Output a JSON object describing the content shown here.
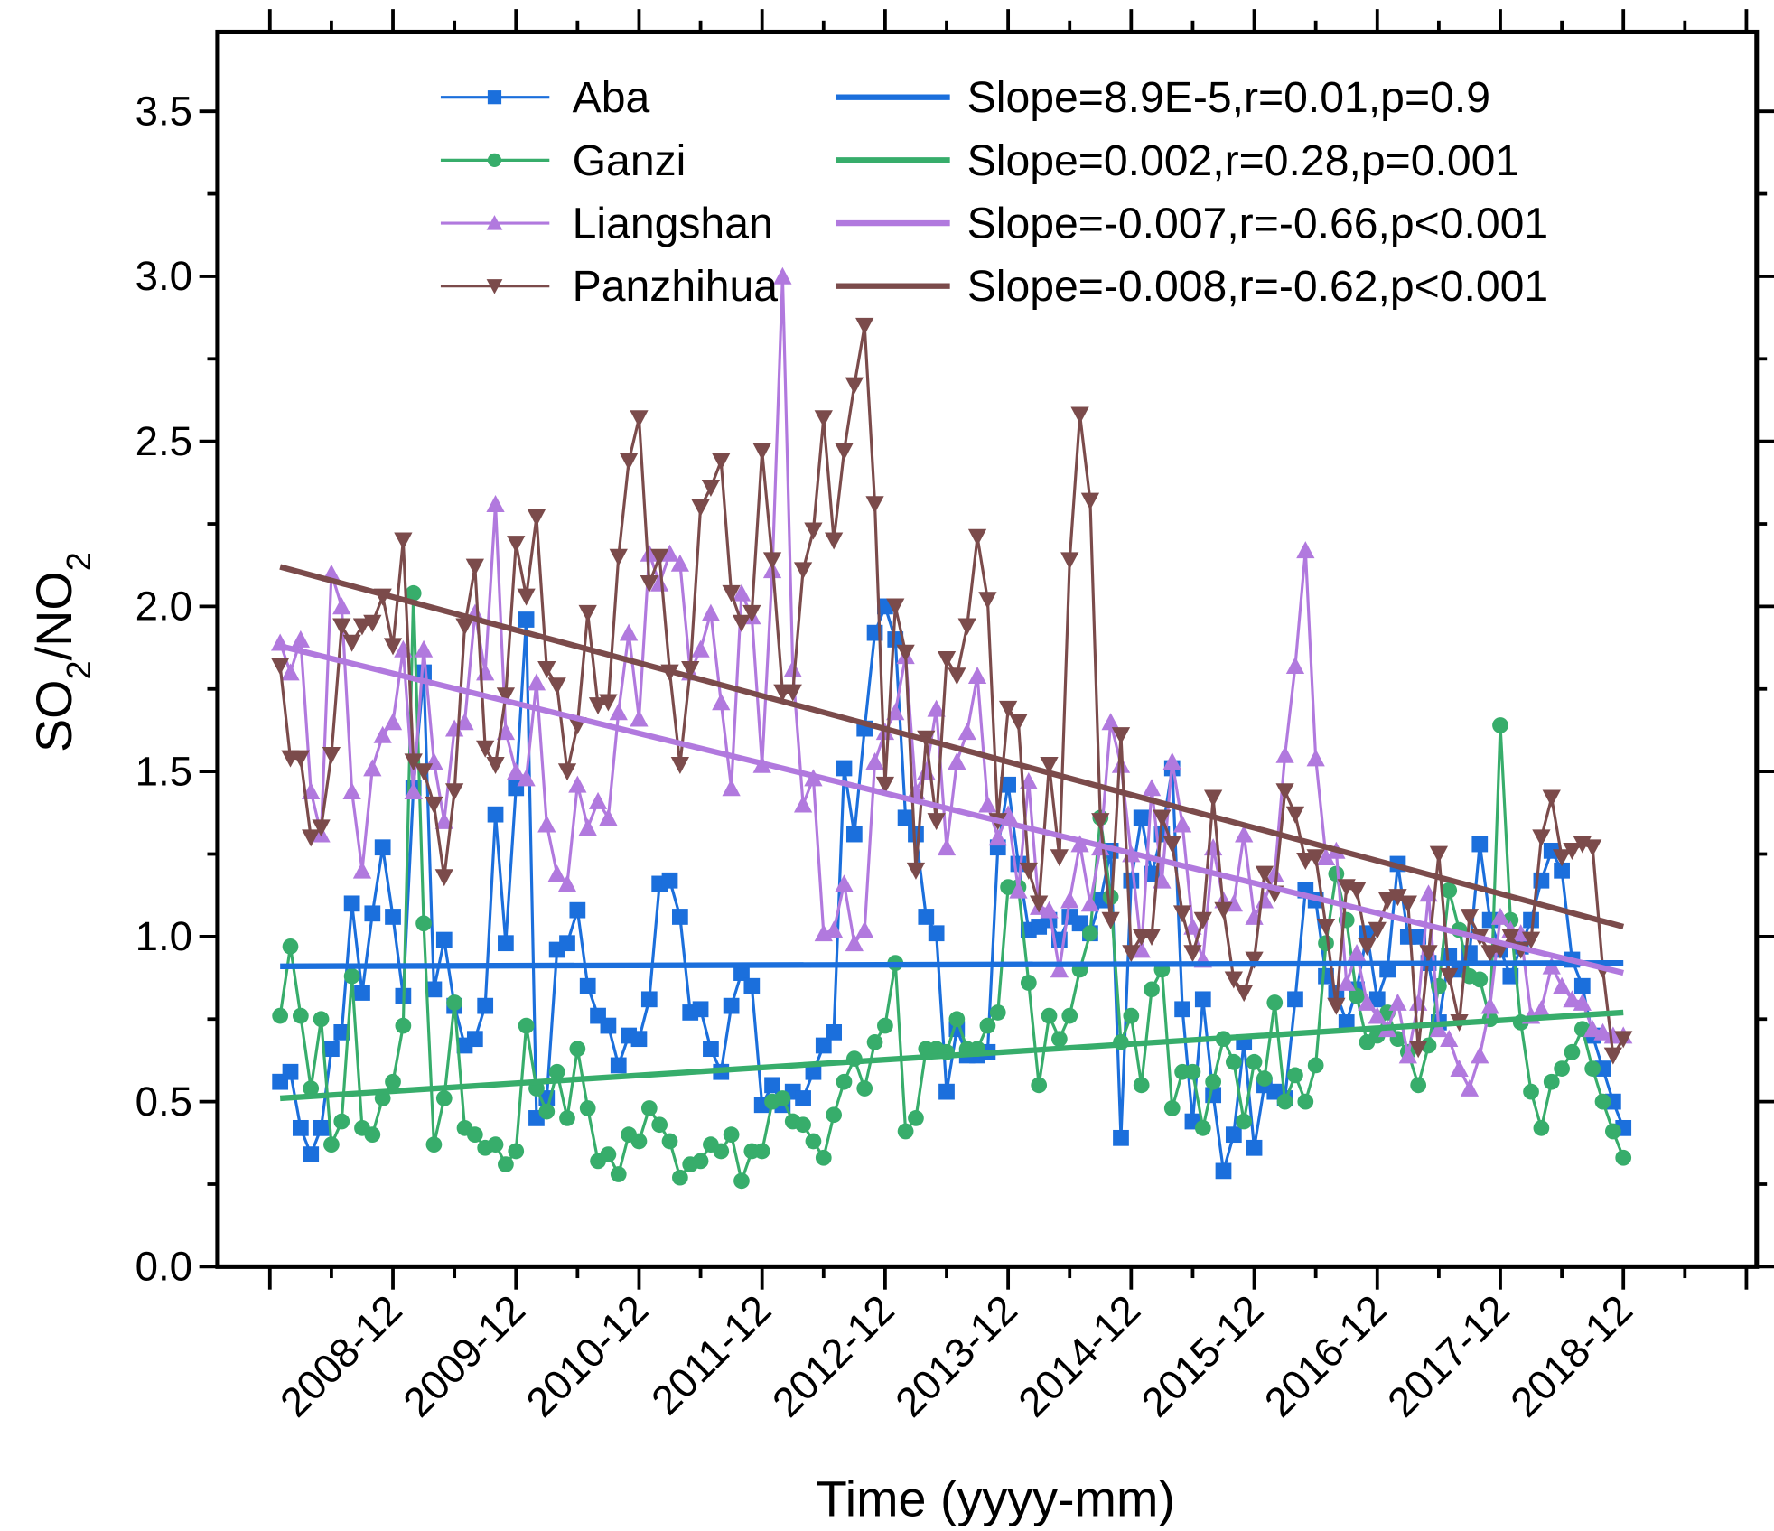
{
  "chart_data": {
    "type": "line",
    "xlabel": "Time (yyyy-mm)",
    "ylabel_main": "SO",
    "ylabel_sub1": "2",
    "ylabel_mid": "/NO",
    "ylabel_sub2": "2",
    "ylim": [
      0,
      3.74
    ],
    "x_start": "2008-01",
    "x_end": "2018-12",
    "xlim_months": [
      -6.1,
      144
    ],
    "yticks": [
      "0.0",
      "0.5",
      "1.0",
      "1.5",
      "2.0",
      "2.5",
      "3.0",
      "3.5"
    ],
    "xticks": [
      "2008-12",
      "2009-12",
      "2010-12",
      "2011-12",
      "2012-12",
      "2013-12",
      "2014-12",
      "2015-12",
      "2016-12",
      "2017-12",
      "2018-12"
    ],
    "series": [
      {
        "name": "Aba",
        "marker": "square",
        "color": "#1b6fdc",
        "values": [
          0.56,
          0.59,
          0.42,
          0.34,
          0.42,
          0.66,
          0.71,
          1.1,
          0.83,
          1.07,
          1.27,
          1.06,
          0.82,
          1.45,
          1.8,
          0.84,
          0.99,
          0.79,
          0.67,
          0.69,
          0.79,
          1.37,
          0.98,
          1.45,
          1.96,
          0.45,
          0.51,
          0.96,
          0.98,
          1.08,
          0.85,
          0.76,
          0.73,
          0.61,
          0.7,
          0.69,
          0.81,
          1.16,
          1.17,
          1.06,
          0.77,
          0.78,
          0.66,
          0.59,
          0.79,
          0.89,
          0.85,
          0.49,
          0.55,
          0.49,
          0.53,
          0.51,
          0.59,
          0.67,
          0.71,
          1.51,
          1.31,
          1.63,
          1.92,
          2.0,
          1.9,
          1.36,
          1.31,
          1.06,
          1.01,
          0.53,
          0.72,
          0.64,
          0.64,
          0.65,
          1.27,
          1.46,
          1.22,
          1.02,
          1.03,
          1.05,
          0.99,
          1.06,
          1.04,
          1.01,
          1.11,
          1.26,
          0.39,
          1.17,
          1.36,
          1.19,
          1.31,
          1.51,
          0.78,
          0.44,
          0.81,
          0.52,
          0.29,
          0.4,
          0.68,
          0.36,
          0.55,
          0.53,
          0.51,
          0.81,
          1.14,
          1.11,
          0.88,
          0.83,
          0.74,
          0.84,
          1.01,
          0.81,
          0.9,
          1.22,
          1.0,
          1.0,
          0.92,
          0.74,
          0.94,
          0.9,
          0.95,
          1.28,
          1.05,
          0.96,
          0.88,
          0.97,
          1.05,
          1.17,
          1.26,
          1.2,
          0.93,
          0.85,
          0.7,
          0.6,
          0.5,
          0.42
        ],
        "trend": [
          0.91,
          0.92
        ],
        "trend_label": "Slope=8.9E-5,r=0.01,p=0.9"
      },
      {
        "name": "Ganzi",
        "marker": "circle",
        "color": "#37ad6b",
        "values": [
          0.76,
          0.97,
          0.76,
          0.54,
          0.75,
          0.37,
          0.44,
          0.88,
          0.42,
          0.4,
          0.51,
          0.56,
          0.73,
          2.04,
          1.04,
          0.37,
          0.51,
          0.8,
          0.42,
          0.4,
          0.36,
          0.37,
          0.31,
          0.35,
          0.73,
          0.54,
          0.47,
          0.59,
          0.45,
          0.66,
          0.48,
          0.32,
          0.34,
          0.28,
          0.4,
          0.38,
          0.48,
          0.43,
          0.38,
          0.27,
          0.31,
          0.32,
          0.37,
          0.35,
          0.4,
          0.26,
          0.35,
          0.35,
          0.5,
          0.51,
          0.44,
          0.43,
          0.38,
          0.33,
          0.46,
          0.56,
          0.63,
          0.54,
          0.68,
          0.73,
          0.92,
          0.41,
          0.45,
          0.66,
          0.66,
          0.65,
          0.75,
          0.66,
          0.66,
          0.73,
          0.77,
          1.15,
          1.15,
          0.86,
          0.55,
          0.76,
          0.69,
          0.76,
          0.9,
          1.01,
          1.36,
          1.12,
          0.68,
          0.76,
          0.55,
          0.84,
          0.9,
          0.48,
          0.59,
          0.59,
          0.42,
          0.56,
          0.69,
          0.62,
          0.44,
          0.62,
          0.57,
          0.8,
          0.5,
          0.58,
          0.5,
          0.61,
          0.98,
          1.19,
          1.05,
          0.82,
          0.68,
          0.7,
          0.77,
          0.69,
          0.65,
          0.55,
          0.67,
          0.85,
          1.14,
          1.02,
          0.88,
          0.87,
          0.75,
          1.64,
          1.05,
          0.74,
          0.53,
          0.42,
          0.56,
          0.6,
          0.65,
          0.72,
          0.6,
          0.5,
          0.41,
          0.33
        ],
        "trend": [
          0.51,
          0.77
        ],
        "trend_label": "Slope=0.002,r=0.28,p=0.001"
      },
      {
        "name": "Liangshan",
        "marker": "triangle-up",
        "color": "#b179de",
        "values": [
          1.89,
          1.8,
          1.9,
          1.44,
          1.31,
          2.1,
          2.0,
          1.44,
          1.2,
          1.51,
          1.61,
          1.65,
          1.87,
          1.44,
          1.87,
          1.53,
          1.35,
          1.63,
          1.65,
          1.98,
          1.8,
          2.31,
          1.62,
          1.5,
          1.48,
          1.77,
          1.34,
          1.19,
          1.16,
          1.46,
          1.33,
          1.41,
          1.36,
          1.68,
          1.92,
          1.66,
          2.16,
          2.07,
          2.16,
          2.13,
          1.8,
          1.87,
          1.98,
          1.71,
          1.45,
          2.04,
          1.97,
          1.52,
          2.11,
          3.0,
          1.81,
          1.4,
          1.48,
          1.01,
          1.02,
          1.16,
          0.98,
          1.02,
          1.53,
          1.62,
          1.68,
          1.85,
          1.44,
          1.5,
          1.69,
          1.27,
          1.53,
          1.62,
          1.79,
          1.4,
          1.3,
          1.37,
          1.14,
          1.47,
          1.09,
          1.08,
          0.9,
          1.11,
          1.28,
          1.1,
          1.27,
          1.65,
          1.52,
          1.25,
          0.96,
          1.45,
          1.17,
          1.53,
          1.34,
          1.03,
          0.93,
          1.27,
          1.11,
          1.1,
          1.31,
          1.06,
          1.11,
          1.19,
          1.55,
          1.82,
          2.17,
          1.54,
          1.24,
          1.26,
          0.86,
          0.95,
          0.8,
          0.76,
          0.72,
          0.8,
          0.64,
          0.8,
          1.13,
          0.72,
          0.69,
          0.6,
          0.54,
          0.64,
          0.79,
          1.06,
          1.02,
          1.01,
          0.76,
          0.78,
          0.91,
          0.85,
          0.81,
          0.8,
          0.72,
          0.71,
          0.7,
          0.7
        ],
        "trend": [
          1.88,
          0.89
        ],
        "trend_label": "Slope=-0.007,r=-0.66,p<0.001"
      },
      {
        "name": "Panzhihua",
        "marker": "triangle-down",
        "color": "#7b4b4b",
        "values": [
          1.82,
          1.54,
          1.54,
          1.3,
          1.33,
          1.55,
          1.94,
          1.89,
          1.94,
          1.95,
          2.03,
          1.88,
          2.2,
          1.53,
          1.5,
          1.4,
          1.18,
          1.44,
          1.94,
          2.12,
          1.57,
          1.52,
          1.73,
          2.19,
          2.03,
          2.27,
          1.81,
          1.76,
          1.5,
          1.64,
          1.98,
          1.7,
          1.71,
          2.15,
          2.44,
          2.57,
          2.07,
          2.15,
          1.8,
          1.52,
          1.81,
          2.3,
          2.36,
          2.44,
          2.04,
          1.95,
          1.98,
          2.47,
          2.14,
          1.74,
          1.74,
          2.11,
          2.23,
          2.57,
          2.2,
          2.47,
          2.67,
          2.85,
          2.31,
          1.46,
          2.0,
          1.86,
          1.2,
          1.6,
          1.35,
          1.84,
          1.79,
          1.94,
          2.21,
          2.02,
          1.35,
          1.69,
          1.65,
          1.2,
          1.1,
          1.52,
          1.24,
          2.14,
          2.58,
          2.32,
          1.35,
          1.05,
          1.61,
          0.95,
          1.0,
          1.0,
          1.36,
          1.28,
          1.07,
          0.95,
          1.05,
          1.42,
          1.08,
          0.87,
          0.83,
          0.93,
          1.19,
          1.13,
          1.44,
          1.37,
          1.23,
          1.24,
          1.03,
          0.79,
          1.15,
          1.14,
          0.97,
          1.02,
          1.11,
          1.12,
          1.1,
          0.66,
          0.95,
          1.25,
          0.88,
          0.74,
          1.06,
          1.0,
          0.95,
          0.96,
          1.0,
          0.96,
          0.99,
          1.3,
          1.42,
          1.24,
          1.26,
          1.28,
          1.27,
          0.9,
          0.64,
          0.69
        ],
        "trend": [
          2.12,
          1.03
        ],
        "trend_label": "Slope=-0.008,r=-0.62,p<0.001"
      }
    ],
    "legend_position": "top"
  }
}
